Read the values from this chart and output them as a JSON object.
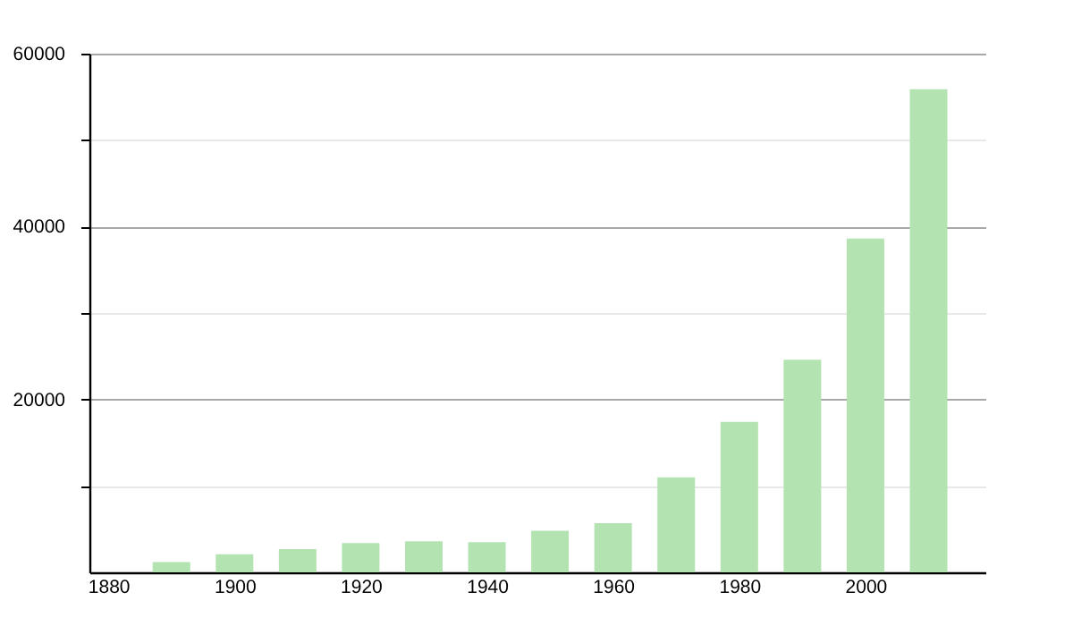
{
  "chart_data": {
    "type": "bar",
    "x": [
      1890,
      1900,
      1910,
      1920,
      1930,
      1940,
      1950,
      1960,
      1970,
      1980,
      1990,
      2000,
      2010
    ],
    "values": [
      1200,
      2100,
      2700,
      3400,
      3600,
      3500,
      4800,
      5700,
      11000,
      17400,
      24600,
      38600,
      55900
    ],
    "color": "#b3e3b1",
    "xlim": [
      1877,
      2019
    ],
    "xticks": [
      1880,
      1900,
      1920,
      1940,
      1960,
      1980,
      2000
    ],
    "ylim": [
      0,
      60000
    ],
    "yticks": [
      {
        "value": 10000,
        "label": null
      },
      20000,
      {
        "value": 30000,
        "label": null
      },
      40000,
      {
        "value": 50000,
        "label": null
      },
      60000
    ],
    "grid": "y"
  }
}
